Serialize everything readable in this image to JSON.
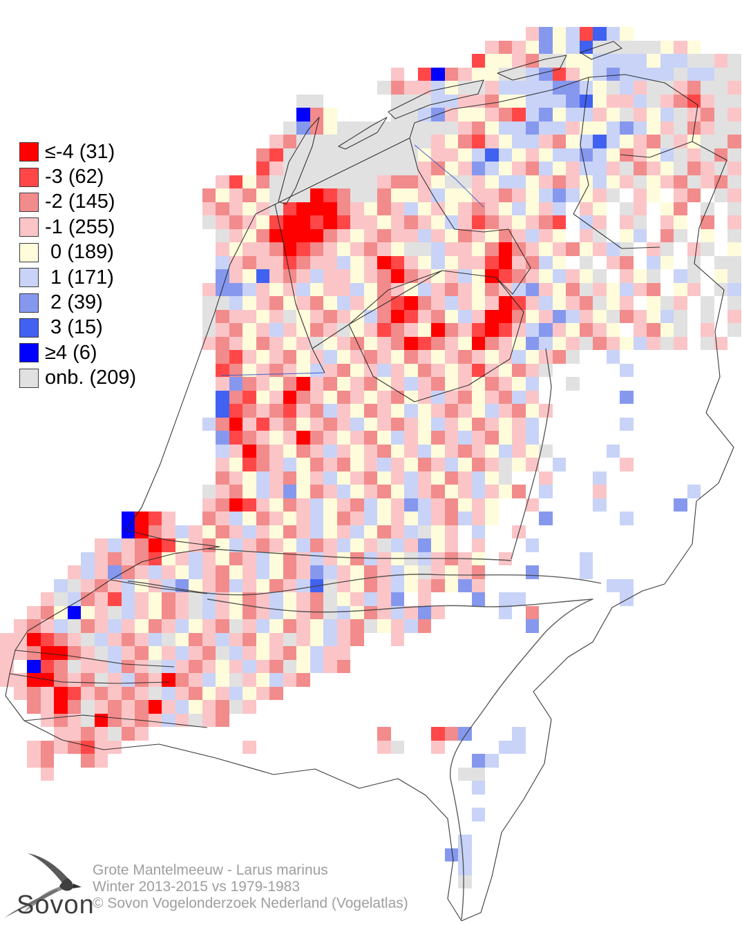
{
  "footer": {
    "species": "Grote Mantelmeeuw - Larus marinus",
    "period": "Winter 2013-2015 vs 1979-1983",
    "copyright": "© Sovon Vogelonderzoek Nederland (Vogelatlas)",
    "logo_text": "Sovon"
  },
  "legend": {
    "items": [
      {
        "value": "≤-4",
        "count": 31,
        "text": "≤-4 (31)",
        "char": "R",
        "color": "#fe0000"
      },
      {
        "value": "-3",
        "count": 62,
        "text": "-3 (62)",
        "char": "r",
        "color": "#ff4748"
      },
      {
        "value": "-2",
        "count": 145,
        "text": "-2 (145)",
        "char": "o",
        "color": "#f28b8b"
      },
      {
        "value": "-1",
        "count": 255,
        "text": "-1 (255)",
        "char": "p",
        "color": "#fbc5c7"
      },
      {
        "value": "0",
        "count": 189,
        "text": " 0 (189)",
        "char": "y",
        "color": "#fffcdb"
      },
      {
        "value": "1",
        "count": 171,
        "text": " 1 (171)",
        "char": "l",
        "color": "#c8d3f7"
      },
      {
        "value": "2",
        "count": 39,
        "text": " 2 (39)",
        "char": "m",
        "color": "#8698ee"
      },
      {
        "value": "3",
        "count": 15,
        "text": " 3 (15)",
        "char": "b",
        "color": "#4161f1"
      },
      {
        "value": "≥4",
        "count": 6,
        "text": "≥4 (6)",
        "char": "B",
        "color": "#0000fe"
      },
      {
        "value": "onb.",
        "count": 209,
        "text": "onb. (209)",
        "char": "g",
        "color": "#e1e1e1"
      }
    ]
  },
  "chart_data": {
    "type": "heatmap",
    "title": "Grote Mantelmeeuw - Larus marinus",
    "subtitle": "Winter 2013-2015 vs 1979-1983",
    "categories": [
      "≤-4",
      "-3",
      "-2",
      "-1",
      "0",
      "1",
      "2",
      "3",
      "≥4",
      "onb."
    ],
    "values": [
      31,
      62,
      145,
      255,
      189,
      171,
      39,
      15,
      6,
      209
    ],
    "legend_position": "top-left",
    "region": "Netherlands 5x5 km atlas grid"
  },
  "map": {
    "cell_size": 19.5,
    "cols": 55,
    "rows_count": 68,
    "classes": {
      "R": {
        "label": "≤-4",
        "color": "#fe0000"
      },
      "r": {
        "label": "-3",
        "color": "#ff4748"
      },
      "o": {
        "label": "-2",
        "color": "#f28b8b"
      },
      "p": {
        "label": "-1",
        "color": "#fbc5c7"
      },
      "y": {
        "label": "0",
        "color": "#fffcdb"
      },
      "l": {
        "label": "1",
        "color": "#c8d3f7"
      },
      "m": {
        "label": "2",
        "color": "#8698ee"
      },
      "b": {
        "label": "3",
        "color": "#4161f1"
      },
      "B": {
        "label": "≥4",
        "color": "#0000fe"
      },
      "g": {
        "label": "onb.",
        "color": "#e1e1e1"
      }
    },
    "rows": [
      [],
      [],
      [
        {
          "o": 39,
          "s": "pmylrbly"
        }
      ],
      [
        {
          "o": 36,
          "s": "popymylbgggggypy"
        }
      ],
      [
        {
          "o": 35,
          "s": "ryypoggyyllllyllggpg"
        }
      ],
      [
        {
          "o": 29,
          "s": "p.rBopyygglmrpylmllllgllgg"
        }
      ],
      [
        {
          "o": 28,
          "s": "gopplyggpllllmmlyglpggpoggp"
        }
      ],
      [
        {
          "o": 22,
          "s": "gg.....gggllppoyylllmb"
        },
        {
          "o": 44,
          "s": "ypplgporpgg"
        }
      ],
      [
        {
          "o": 22,
          "s": "Boy....gglmpyypor"
        },
        {
          "o": 39,
          "s": "lmyllpygpylgpogp"
        }
      ],
      [
        {
          "o": 21,
          "s": "gmoygggggggggpoyllmllpyylmlypgopgg"
        }
      ],
      [
        {
          "o": 20,
          "s": "poggggggggggpyorpyllpoylblypogpyggo"
        }
      ],
      [
        {
          "o": 19,
          "s": "orggggggggggyppylblypyllmlyopylgpgog"
        }
      ],
      [
        {
          "o": 19,
          "s": "rpggggggggggpoypmlypolypllpgopygopgp"
        }
      ],
      [
        {
          "o": 16,
          "s": "pryoggggggggpoopyggpyllypopylypgypogpog"
        }
      ],
      [
        {
          "o": 15,
          "s": "oypoygggRroggoyyplyyppopylmlypg.py.po.gp"
        }
      ],
      [
        {
          "o": 15,
          "s": "popypgrRRRopyoplypypopylypl.py.gp.yo.g.g"
        }
      ],
      [
        {
          "o": 15,
          "s": "gpopyrRRrRrppypopylpropypor.lp.pg.py.o.p"
        }
      ],
      [
        {
          "o": 16,
          "s": "gpyoRRRRopypopplpyopyoplpy.pg.yl.og.y.g"
        }
      ],
      [
        {
          "o": 16,
          "s": "pyppoRropypopygglppyoRopypoyplg.pg.pg.y"
        }
      ],
      [
        {
          "o": 16,
          "s": "lpoppropplypRrpylypprRpoly.g.po.ly.g.gg"
        }
      ],
      [
        {
          "o": 16,
          "s": "mpybpoplppypoRopyplyRropylpyg.pyg.lg.yg"
        }
      ],
      [
        {
          "o": 15,
          "s": "pmmlpyplypplyopylpopyoplmpyogpylpo.yp.gl"
        }
      ],
      [
        {
          "o": 15,
          "s": "gglypoypoylpyorRoplpypRrplypogyp.ygp.g.g"
        }
      ],
      [
        {
          "o": 15,
          "s": "goppypgypopyloRrpoylpRRoypmlpygopylg.g.p"
        }
      ],
      [
        {
          "o": 15,
          "s": "gpoyplpyopgypropyRoprRrplmpyopy.poyg.p.g"
        }
      ],
      [
        {
          "o": 15,
          "s": "popyopypgypoypoRropyRopymlypgopylpgp.gp."
        }
      ],
      [
        {
          "o": 16,
          "s": "orpypoyplypopyopypopyplypog"
        },
        {
          "o": 45,
          "s": "l"
        }
      ],
      [
        {
          "o": 16,
          "s": "roypopylpoyplpyopyprpyopg"
        },
        {
          "o": 46,
          "s": "l"
        }
      ],
      [
        {
          "o": 16,
          "s": "pmopyoRpoypoyplpoypyopyl"
        },
        {
          "o": 42,
          "s": "g"
        }
      ],
      [
        {
          "o": 16,
          "s": "borypRopyopypoyplpoypolp"
        },
        {
          "o": 46,
          "s": "m"
        }
      ],
      [
        {
          "o": 16,
          "s": "broporpolpyopylypopylpoyp"
        }
      ],
      [
        {
          "o": 15,
          "s": "loRprpoypoplypopylpyopypl"
        },
        {
          "o": 46,
          "s": "l"
        }
      ],
      [
        {
          "o": 16,
          "s": "mropypRopypoylpyoplpoypl"
        }
      ],
      [
        {
          "o": 16,
          "s": "lpRopyoplpypoyplypopylpyg"
        },
        {
          "o": 45,
          "s": "l"
        }
      ],
      [
        {
          "o": 16,
          "s": "pyroplyopoyplpyoplyopgyp"
        },
        {
          "o": 41,
          "s": "l"
        },
        {
          "o": 46,
          "s": "p"
        }
      ],
      [
        {
          "o": 16,
          "s": "opylpoyplypoyplpyoplyg"
        },
        {
          "o": 40,
          "s": "p"
        },
        {
          "o": 44,
          "s": "l"
        }
      ],
      [
        {
          "o": 15,
          "s": "gpoylpmyoplypoylpoyplpyo"
        },
        {
          "o": 40,
          "s": "l"
        },
        {
          "o": 44,
          "s": "p"
        },
        {
          "o": 51,
          "s": "l"
        }
      ],
      [
        {
          "o": 15,
          "s": "poRrpyoplypolypmlpoypy"
        },
        {
          "o": 39,
          "s": "p"
        },
        {
          "o": 44,
          "s": "l"
        },
        {
          "o": 50,
          "s": "m"
        }
      ],
      [
        {
          "o": 9,
          "s": "BRrp"
        },
        {
          "o": 15,
          "s": "oplyopyplyoplypylpolpy"
        },
        {
          "o": 40,
          "s": "m"
        },
        {
          "o": 46,
          "s": "l"
        }
      ],
      [
        {
          "o": 9,
          "s": "BRoplp"
        },
        {
          "o": 15,
          "s": "yoplpyoplyplyoplgyp"
        },
        {
          "o": 35,
          "s": "l"
        },
        {
          "o": 38,
          "s": "p"
        }
      ],
      [
        {
          "o": 7,
          "s": "plpoRryp"
        },
        {
          "o": 15,
          "s": "oylpopyloplypglpmyp"
        },
        {
          "o": 35,
          "s": "p"
        },
        {
          "o": 39,
          "s": "l"
        }
      ],
      [
        {
          "o": 6,
          "s": "lpoporypl"
        },
        {
          "o": 15,
          "s": "pyoplyoplpyolpyglpop"
        },
        {
          "o": 35,
          "s": "y"
        },
        {
          "o": 37,
          "s": "p"
        },
        {
          "o": 43,
          "s": "l"
        }
      ],
      [
        {
          "o": 5,
          "s": "plpmoplpylpoyplyopmlpyoplygpyp"
        },
        {
          "o": 35,
          "s": "o"
        },
        {
          "o": 39,
          "s": "m"
        },
        {
          "o": 43,
          "s": "l"
        }
      ],
      [
        {
          "o": 4,
          "s": "lgpoplyplmypolpyoplbgpyoplypoymp"
        },
        {
          "o": 45,
          "s": "ll"
        }
      ],
      [
        {
          "o": 3,
          "s": "pgloprlpyopglpyoplypogyplpm"
        },
        {
          "o": 31,
          "s": "p"
        },
        {
          "o": 35,
          "s": "m"
        },
        {
          "o": 37,
          "s": "ll"
        },
        {
          "o": 46,
          "s": "l"
        }
      ],
      [
        {
          "o": 2,
          "s": "poyBypglpyopglpyoplypoglyoplpmp"
        },
        {
          "o": 37,
          "s": "l"
        },
        {
          "o": 39,
          "s": "o"
        }
      ],
      [
        {
          "o": 1,
          "s": "poplgoplpyoplypogplyopylpogyplo"
        },
        {
          "o": 39,
          "s": "m"
        }
      ],
      [
        {
          "o": 0,
          "s": "ppRropglpoplgyoplpoypgpylpo"
        },
        {
          "o": 29,
          "s": "p"
        }
      ],
      [
        {
          "o": 0,
          "s": "ppoRRopglpoyplpoglpypoylpp"
        }
      ],
      [
        {
          "o": 0,
          "s": "p.Brogpplopglpopyplpogylpo"
        }
      ],
      [
        {
          "o": 0,
          "s": "ppRRopogplopRoplygpylpo"
        }
      ],
      [
        {
          "o": 1,
          "s": "popRrpopopglpoyplypo"
        }
      ],
      [
        {
          "o": 2,
          "s": "opRogpopoRplypogp"
        }
      ],
      [
        {
          "o": 3,
          "s": "popgRopoplpgpo"
        }
      ],
      [
        {
          "o": 4,
          "s": "ppopgop"
        },
        {
          "o": 28,
          "s": "o"
        },
        {
          "o": 32,
          "s": "rom"
        },
        {
          "o": 38,
          "s": "l"
        }
      ],
      [
        {
          "o": 2,
          "s": "poporpp"
        },
        {
          "o": 18,
          "s": "p"
        },
        {
          "o": 28,
          "s": "pg"
        },
        {
          "o": 32,
          "s": "p"
        },
        {
          "o": 37,
          "s": "ll"
        }
      ],
      [
        {
          "o": 2,
          "s": "po"
        },
        {
          "o": 6,
          "s": "op"
        },
        {
          "o": 35,
          "s": "ml"
        }
      ],
      [
        {
          "o": 3,
          "s": "p"
        },
        {
          "o": 34,
          "s": "gg"
        }
      ],
      [
        {
          "o": 35,
          "s": "l"
        }
      ],
      [],
      [
        {
          "o": 35,
          "s": "l"
        }
      ],
      [],
      [
        {
          "o": 34,
          "s": "l"
        }
      ],
      [
        {
          "o": 33,
          "s": "ml"
        }
      ],
      [
        {
          "o": 34,
          "s": "l"
        }
      ],
      [
        {
          "o": 34,
          "s": "g"
        }
      ],
      [],
      []
    ]
  }
}
